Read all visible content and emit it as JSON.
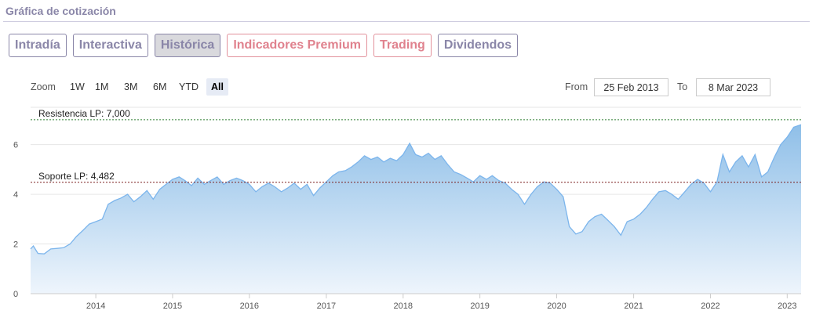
{
  "header": {
    "title": "Gráfica de cotización"
  },
  "tabs": [
    {
      "label": "Intradía",
      "active": false,
      "premium": false
    },
    {
      "label": "Interactiva",
      "active": false,
      "premium": false
    },
    {
      "label": "Histórica",
      "active": true,
      "premium": false
    },
    {
      "label": "Indicadores Premium",
      "active": false,
      "premium": true
    },
    {
      "label": "Trading",
      "active": false,
      "premium": true
    },
    {
      "label": "Dividendos",
      "active": false,
      "premium": false
    }
  ],
  "range_selector": {
    "zoom_label": "Zoom",
    "buttons": [
      "1W",
      "1M",
      "3M",
      "6M",
      "YTD",
      "All"
    ],
    "selected": "All",
    "from_label": "From",
    "from_value": "25 Feb 2013",
    "to_label": "To",
    "to_value": "8 Mar 2023"
  },
  "colors": {
    "accent": "#8a86a8",
    "premium": "#e0828e",
    "series_line": "#7cb5ec",
    "area_top": "#8fbfe8",
    "area_bottom": "#eef5fc",
    "resistance_line": "#2e7d32",
    "support_line": "#7a1f1f"
  },
  "chart_data": {
    "type": "area",
    "x_axis": {
      "type": "date",
      "min": "2013-02-25",
      "max": "2023-03-08",
      "tick_labels": [
        "2014",
        "2015",
        "2016",
        "2017",
        "2018",
        "2019",
        "2020",
        "2021",
        "2022",
        "2023"
      ]
    },
    "y_axis": {
      "min": 0,
      "max": 7.5,
      "tick_labels": [
        "0",
        "2",
        "4",
        "6"
      ],
      "grid": true
    },
    "series": [
      {
        "points": [
          [
            "2013-02-25",
            1.8
          ],
          [
            "2013-03-10",
            1.92
          ],
          [
            "2013-04-01",
            1.62
          ],
          [
            "2013-05-01",
            1.6
          ],
          [
            "2013-06-01",
            1.8
          ],
          [
            "2013-07-01",
            1.82
          ],
          [
            "2013-08-01",
            1.85
          ],
          [
            "2013-09-01",
            2.0
          ],
          [
            "2013-10-01",
            2.3
          ],
          [
            "2013-11-01",
            2.55
          ],
          [
            "2013-12-01",
            2.8
          ],
          [
            "2014-01-01",
            2.9
          ],
          [
            "2014-02-01",
            3.0
          ],
          [
            "2014-03-01",
            3.6
          ],
          [
            "2014-04-01",
            3.75
          ],
          [
            "2014-05-01",
            3.85
          ],
          [
            "2014-06-01",
            4.0
          ],
          [
            "2014-07-01",
            3.7
          ],
          [
            "2014-08-01",
            3.9
          ],
          [
            "2014-09-01",
            4.15
          ],
          [
            "2014-10-01",
            3.8
          ],
          [
            "2014-11-01",
            4.2
          ],
          [
            "2014-12-01",
            4.4
          ],
          [
            "2015-01-01",
            4.6
          ],
          [
            "2015-02-01",
            4.7
          ],
          [
            "2015-03-01",
            4.55
          ],
          [
            "2015-04-01",
            4.35
          ],
          [
            "2015-05-01",
            4.65
          ],
          [
            "2015-06-01",
            4.4
          ],
          [
            "2015-07-01",
            4.55
          ],
          [
            "2015-08-01",
            4.7
          ],
          [
            "2015-09-01",
            4.4
          ],
          [
            "2015-10-01",
            4.55
          ],
          [
            "2015-11-01",
            4.65
          ],
          [
            "2015-12-01",
            4.55
          ],
          [
            "2016-01-01",
            4.4
          ],
          [
            "2016-02-01",
            4.1
          ],
          [
            "2016-03-01",
            4.3
          ],
          [
            "2016-04-01",
            4.45
          ],
          [
            "2016-05-01",
            4.3
          ],
          [
            "2016-06-01",
            4.1
          ],
          [
            "2016-07-01",
            4.25
          ],
          [
            "2016-08-01",
            4.45
          ],
          [
            "2016-09-01",
            4.2
          ],
          [
            "2016-10-01",
            4.4
          ],
          [
            "2016-11-01",
            3.95
          ],
          [
            "2016-12-01",
            4.25
          ],
          [
            "2017-01-01",
            4.5
          ],
          [
            "2017-02-01",
            4.75
          ],
          [
            "2017-03-01",
            4.9
          ],
          [
            "2017-04-01",
            4.95
          ],
          [
            "2017-05-01",
            5.1
          ],
          [
            "2017-06-01",
            5.3
          ],
          [
            "2017-07-01",
            5.55
          ],
          [
            "2017-08-01",
            5.4
          ],
          [
            "2017-09-01",
            5.5
          ],
          [
            "2017-10-01",
            5.3
          ],
          [
            "2017-11-01",
            5.45
          ],
          [
            "2017-12-01",
            5.35
          ],
          [
            "2018-01-01",
            5.6
          ],
          [
            "2018-02-01",
            6.05
          ],
          [
            "2018-03-01",
            5.6
          ],
          [
            "2018-04-01",
            5.5
          ],
          [
            "2018-05-01",
            5.65
          ],
          [
            "2018-06-01",
            5.4
          ],
          [
            "2018-07-01",
            5.55
          ],
          [
            "2018-08-01",
            5.2
          ],
          [
            "2018-09-01",
            4.9
          ],
          [
            "2018-10-01",
            4.8
          ],
          [
            "2018-11-01",
            4.65
          ],
          [
            "2018-12-01",
            4.5
          ],
          [
            "2019-01-01",
            4.75
          ],
          [
            "2019-02-01",
            4.6
          ],
          [
            "2019-03-01",
            4.75
          ],
          [
            "2019-04-01",
            4.55
          ],
          [
            "2019-05-01",
            4.45
          ],
          [
            "2019-06-01",
            4.2
          ],
          [
            "2019-07-01",
            4.0
          ],
          [
            "2019-08-01",
            3.6
          ],
          [
            "2019-09-01",
            4.0
          ],
          [
            "2019-10-01",
            4.3
          ],
          [
            "2019-11-01",
            4.5
          ],
          [
            "2019-12-01",
            4.45
          ],
          [
            "2020-01-01",
            4.2
          ],
          [
            "2020-02-01",
            3.9
          ],
          [
            "2020-03-01",
            2.7
          ],
          [
            "2020-04-01",
            2.4
          ],
          [
            "2020-05-01",
            2.5
          ],
          [
            "2020-06-01",
            2.9
          ],
          [
            "2020-07-01",
            3.1
          ],
          [
            "2020-08-01",
            3.2
          ],
          [
            "2020-09-01",
            2.95
          ],
          [
            "2020-10-01",
            2.7
          ],
          [
            "2020-11-01",
            2.35
          ],
          [
            "2020-12-01",
            2.9
          ],
          [
            "2021-01-01",
            3.0
          ],
          [
            "2021-02-01",
            3.2
          ],
          [
            "2021-03-01",
            3.45
          ],
          [
            "2021-04-01",
            3.8
          ],
          [
            "2021-05-01",
            4.1
          ],
          [
            "2021-06-01",
            4.15
          ],
          [
            "2021-07-01",
            4.0
          ],
          [
            "2021-08-01",
            3.8
          ],
          [
            "2021-09-01",
            4.1
          ],
          [
            "2021-10-01",
            4.4
          ],
          [
            "2021-11-01",
            4.6
          ],
          [
            "2021-12-01",
            4.45
          ],
          [
            "2022-01-01",
            4.1
          ],
          [
            "2022-02-01",
            4.5
          ],
          [
            "2022-03-01",
            5.6
          ],
          [
            "2022-04-01",
            4.9
          ],
          [
            "2022-05-01",
            5.3
          ],
          [
            "2022-06-01",
            5.55
          ],
          [
            "2022-07-01",
            5.1
          ],
          [
            "2022-08-01",
            5.6
          ],
          [
            "2022-09-01",
            4.7
          ],
          [
            "2022-10-01",
            4.9
          ],
          [
            "2022-11-01",
            5.5
          ],
          [
            "2022-12-01",
            6.0
          ],
          [
            "2023-01-01",
            6.3
          ],
          [
            "2023-02-01",
            6.7
          ],
          [
            "2023-03-08",
            6.8
          ]
        ]
      }
    ],
    "reference_lines": [
      {
        "label": "Resistencia LP: 7,000",
        "value": 7.0
      },
      {
        "label": "Soporte LP: 4,482",
        "value": 4.482
      }
    ]
  }
}
